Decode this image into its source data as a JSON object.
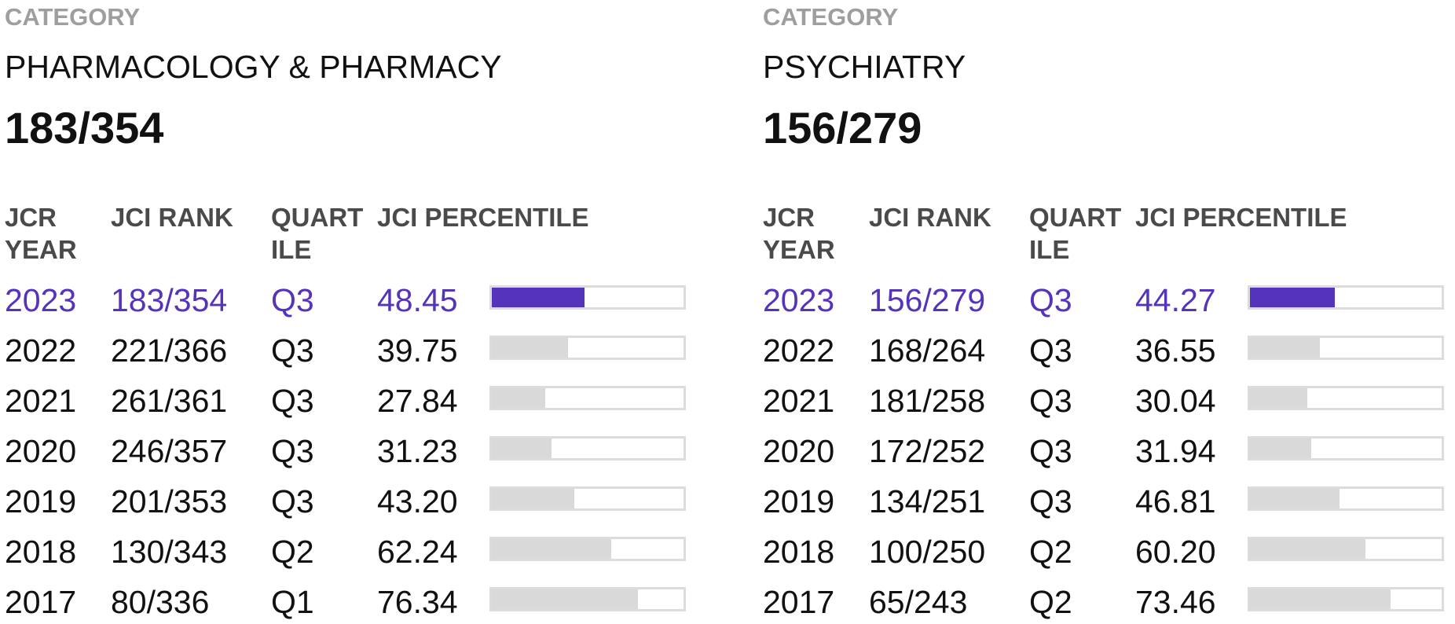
{
  "colors": {
    "accent": "#5533bb",
    "bar_bg": "#d9d9d9",
    "label_gray": "#9e9e9e"
  },
  "panels": [
    {
      "category_label": "CATEGORY",
      "category_name": "PHARMACOLOGY & PHARMACY",
      "current_rank": "183/354",
      "headers": {
        "year_1": "JCR",
        "year_2": "YEAR",
        "rank": "JCI RANK",
        "quart_1": "QUART",
        "quart_2": "ILE",
        "percentile": "JCI PERCENTILE"
      },
      "rows": [
        {
          "year": "2023",
          "rank": "183/354",
          "quartile": "Q3",
          "percentile": "48.45",
          "current": true
        },
        {
          "year": "2022",
          "rank": "221/366",
          "quartile": "Q3",
          "percentile": "39.75"
        },
        {
          "year": "2021",
          "rank": "261/361",
          "quartile": "Q3",
          "percentile": "27.84"
        },
        {
          "year": "2020",
          "rank": "246/357",
          "quartile": "Q3",
          "percentile": "31.23"
        },
        {
          "year": "2019",
          "rank": "201/353",
          "quartile": "Q3",
          "percentile": "43.20"
        },
        {
          "year": "2018",
          "rank": "130/343",
          "quartile": "Q2",
          "percentile": "62.24"
        },
        {
          "year": "2017",
          "rank": "80/336",
          "quartile": "Q1",
          "percentile": "76.34"
        }
      ]
    },
    {
      "category_label": "CATEGORY",
      "category_name": "PSYCHIATRY",
      "current_rank": "156/279",
      "headers": {
        "year_1": "JCR",
        "year_2": "YEAR",
        "rank": "JCI RANK",
        "quart_1": "QUART",
        "quart_2": "ILE",
        "percentile": "JCI PERCENTILE"
      },
      "rows": [
        {
          "year": "2023",
          "rank": "156/279",
          "quartile": "Q3",
          "percentile": "44.27",
          "current": true
        },
        {
          "year": "2022",
          "rank": "168/264",
          "quartile": "Q3",
          "percentile": "36.55"
        },
        {
          "year": "2021",
          "rank": "181/258",
          "quartile": "Q3",
          "percentile": "30.04"
        },
        {
          "year": "2020",
          "rank": "172/252",
          "quartile": "Q3",
          "percentile": "31.94"
        },
        {
          "year": "2019",
          "rank": "134/251",
          "quartile": "Q3",
          "percentile": "46.81"
        },
        {
          "year": "2018",
          "rank": "100/250",
          "quartile": "Q2",
          "percentile": "60.20"
        },
        {
          "year": "2017",
          "rank": "65/243",
          "quartile": "Q2",
          "percentile": "73.46"
        }
      ]
    }
  ]
}
